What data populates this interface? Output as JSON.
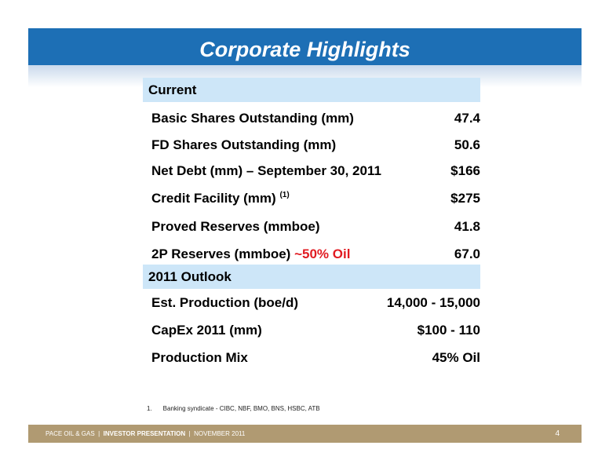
{
  "title": "Corporate Highlights",
  "sections": [
    {
      "header": "Current",
      "rows": [
        {
          "label": "Basic Shares Outstanding (mm)",
          "value": "47.4"
        },
        {
          "label": "FD Shares Outstanding (mm)",
          "value": "50.6"
        },
        {
          "label": "Net Debt (mm) – September  30, 2011",
          "value": "$166"
        },
        {
          "label": "Credit Facility (mm)",
          "sup": "(1)",
          "value": "$275"
        },
        {
          "label": "Proved Reserves (mmboe)",
          "value": "41.8"
        },
        {
          "label": "2P Reserves (mmboe)",
          "note": "~50% Oil",
          "value": "67.0"
        }
      ]
    },
    {
      "header": "2011 Outlook",
      "rows": [
        {
          "label": "Est. Production (boe/d)",
          "value": "14,000 - 15,000"
        },
        {
          "label": "CapEx 2011 (mm)",
          "value": "$100 - 110"
        },
        {
          "label": "Production Mix",
          "value": "45%  Oil"
        }
      ]
    }
  ],
  "footnote": {
    "number": "1.",
    "text": "Banking syndicate  - CIBC, NBF, BMO, BNS, HSBC, ATB"
  },
  "footer": {
    "company": "PACE OIL & GAS",
    "separator": "|",
    "presentation": "INVESTOR PRESENTATION",
    "date": "NOVEMBER 2011",
    "page_number": "4"
  },
  "colors": {
    "title_bar": "#1d6fb5",
    "section_header": "#cde6f8",
    "accent_red": "#e11b22",
    "footer_bar": "#b09a72"
  }
}
